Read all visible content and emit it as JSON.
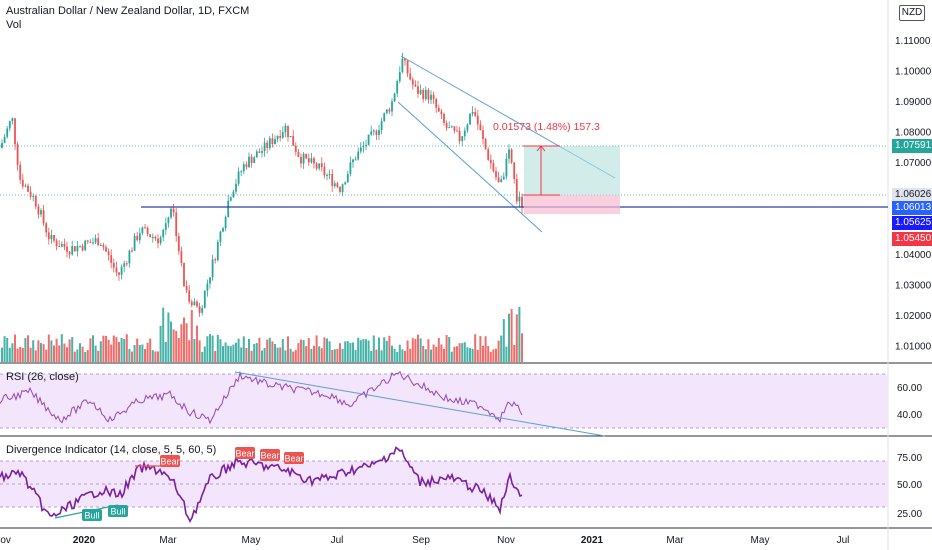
{
  "header": {
    "title": "Australian Dollar / New Zealand Dollar, 1D, FXCM",
    "volume_label": "Vol",
    "currency_badge": "NZD"
  },
  "measure_label": "0.01573 (1.48%) 157.3",
  "price_badges": [
    {
      "value": "1.07591",
      "bg": "#26a69a"
    },
    {
      "value": "1.06026",
      "bg": "#e0e3eb",
      "fg": "#131722"
    },
    {
      "value": "1.06013",
      "bg": "#2962ff"
    },
    {
      "value": "1.05625",
      "bg": "#1a1aff"
    },
    {
      "value": "1.05450",
      "bg": "#f23645"
    }
  ],
  "colors": {
    "up": "#26a69a",
    "down": "#ef5350",
    "trend_line": "#5ba0d0",
    "support_line": "#2a3fb0",
    "indicator_line": "#7b1fa2",
    "indicator_band": "#f3e5fb",
    "measure_text": "#f23645"
  },
  "chart_data": [
    {
      "type": "candlestick",
      "y_ticks": [
        "1.11000",
        "1.10000",
        "1.09000",
        "1.08000",
        "1.07000",
        "1.06000",
        "1.05000",
        "1.04000",
        "1.03000",
        "1.02000",
        "1.01000"
      ],
      "x_ticks": [
        "Nov",
        "2020",
        "Mar",
        "May",
        "Jul",
        "Sep",
        "Nov",
        "2021",
        "Mar",
        "May",
        "Jul"
      ]
    },
    {
      "type": "line",
      "title": "RSI (26, close)",
      "y_ticks": [
        "60.00",
        "40.00"
      ]
    },
    {
      "type": "line",
      "title": "Divergence Indicator (14, close, 5, 5, 60, 5)",
      "y_ticks": [
        "75.00",
        "50.00",
        "25.00"
      ],
      "signals": [
        {
          "label": "Bull",
          "kind": "bull"
        },
        {
          "label": "Bull",
          "kind": "bull"
        },
        {
          "label": "Bear",
          "kind": "bear"
        },
        {
          "label": "Bear",
          "kind": "bear"
        },
        {
          "label": "Bear",
          "kind": "bear"
        },
        {
          "label": "Bear",
          "kind": "bear"
        }
      ]
    }
  ]
}
